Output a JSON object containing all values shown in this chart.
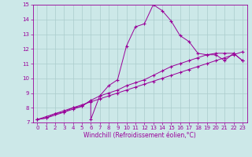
{
  "background_color": "#cce8e8",
  "grid_color": "#aacccc",
  "line_color": "#990099",
  "xlabel": "Windchill (Refroidissement éolien,°C)",
  "xlim": [
    -0.5,
    23.5
  ],
  "ylim": [
    7,
    15
  ],
  "xticks": [
    0,
    1,
    2,
    3,
    4,
    5,
    6,
    7,
    8,
    9,
    10,
    11,
    12,
    13,
    14,
    15,
    16,
    17,
    18,
    19,
    20,
    21,
    22,
    23
  ],
  "yticks": [
    7,
    8,
    9,
    10,
    11,
    12,
    13,
    14,
    15
  ],
  "line1_x": [
    0,
    1,
    3,
    4,
    5,
    6,
    6,
    7,
    8,
    9,
    10,
    11,
    12,
    13,
    14,
    15,
    16,
    17,
    18,
    19,
    20,
    21,
    22,
    23
  ],
  "line1_y": [
    7.2,
    7.3,
    7.7,
    7.9,
    8.1,
    8.5,
    7.2,
    8.8,
    9.5,
    9.9,
    12.2,
    13.5,
    13.7,
    15.0,
    14.6,
    13.9,
    12.9,
    12.5,
    11.7,
    11.6,
    11.6,
    11.2,
    11.7,
    11.2
  ],
  "line2_x": [
    0,
    1,
    2,
    3,
    4,
    5,
    6,
    7,
    8,
    9,
    10,
    11,
    12,
    13,
    14,
    15,
    16,
    17,
    18,
    19,
    20,
    21,
    22,
    23
  ],
  "line2_y": [
    7.2,
    7.3,
    7.6,
    7.7,
    8.0,
    8.1,
    8.5,
    8.8,
    9.0,
    9.2,
    9.5,
    9.7,
    9.9,
    10.2,
    10.5,
    10.8,
    11.0,
    11.2,
    11.4,
    11.6,
    11.7,
    11.7,
    11.7,
    11.2
  ],
  "line3_x": [
    0,
    1,
    2,
    3,
    4,
    5,
    6,
    7,
    8,
    9,
    10,
    11,
    12,
    13,
    14,
    15,
    16,
    17,
    18,
    19,
    20,
    21,
    22,
    23
  ],
  "line3_y": [
    7.2,
    7.4,
    7.6,
    7.8,
    8.0,
    8.2,
    8.4,
    8.6,
    8.8,
    9.0,
    9.2,
    9.4,
    9.6,
    9.8,
    10.0,
    10.2,
    10.4,
    10.6,
    10.8,
    11.0,
    11.2,
    11.4,
    11.6,
    11.8
  ],
  "tick_fontsize": 5,
  "label_fontsize": 5.5
}
